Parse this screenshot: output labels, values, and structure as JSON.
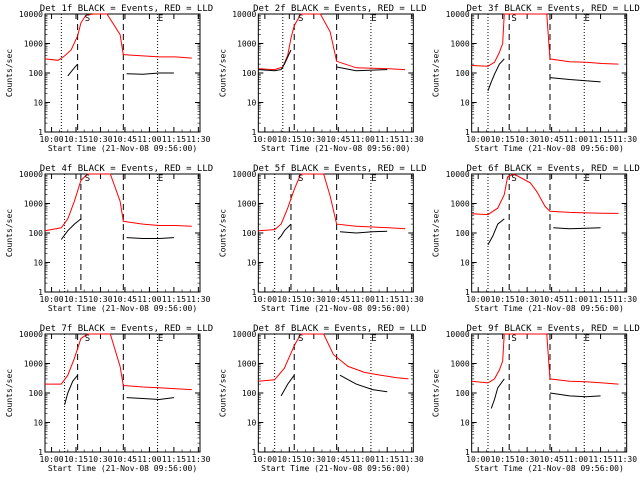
{
  "layout": {
    "rows": 3,
    "cols": 3
  },
  "common": {
    "ylabel": "Counts/sec",
    "xlabel": "Start Time (21-Nov-08 09:56:00)",
    "x_ticks": [
      "10:00",
      "10:15",
      "10:30",
      "10:45",
      "11:00",
      "11:15",
      "11:30"
    ],
    "y_ticks": [
      "1",
      "10",
      "100",
      "1000",
      "10000"
    ],
    "colors": {
      "events": "#000000",
      "lld": "#ff0000",
      "axes": "#000000"
    }
  },
  "chart_data": [
    {
      "type": "line",
      "title": "Det 1f BLACK = Events, RED = LLD",
      "xlim": [
        0,
        95
      ],
      "ylim": [
        1,
        10000
      ],
      "yscale": "log",
      "x_ticks": [
        4,
        19,
        34,
        49,
        64,
        79,
        94
      ],
      "markers": {
        "dotted": [
          10,
          69
        ],
        "dashed": [
          20,
          48
        ],
        "label_S": 26,
        "label_E": 69
      },
      "series": [
        {
          "color": "red",
          "points": [
            [
              0,
              300
            ],
            [
              8,
              270
            ],
            [
              12,
              380
            ],
            [
              16,
              600
            ],
            [
              20,
              1800
            ],
            [
              22,
              5000
            ],
            [
              25,
              9000
            ],
            [
              30,
              10000
            ],
            [
              38,
              10000
            ],
            [
              46,
              2000
            ],
            [
              48,
              420
            ],
            [
              60,
              380
            ],
            [
              70,
              350
            ],
            [
              80,
              350
            ],
            [
              90,
              320
            ]
          ]
        },
        {
          "color": "black",
          "points": [
            [
              14,
              80
            ],
            [
              16,
              110
            ],
            [
              18,
              150
            ],
            [
              20,
              200
            ],
            [
              50,
              95
            ],
            [
              60,
              90
            ],
            [
              70,
              100
            ],
            [
              79,
              100
            ]
          ]
        }
      ]
    },
    {
      "type": "line",
      "title": "Det 2f BLACK = Events, RED = LLD",
      "xlim": [
        0,
        95
      ],
      "ylim": [
        1,
        10000
      ],
      "yscale": "log",
      "x_ticks": [
        4,
        19,
        34,
        49,
        64,
        79,
        94
      ],
      "markers": {
        "dotted": [
          15,
          69
        ],
        "dashed": [
          22,
          48
        ],
        "label_S": 26,
        "label_E": 69
      },
      "series": [
        {
          "color": "red",
          "points": [
            [
              0,
              140
            ],
            [
              10,
              130
            ],
            [
              15,
              160
            ],
            [
              18,
              400
            ],
            [
              20,
              1500
            ],
            [
              22,
              4000
            ],
            [
              26,
              10000
            ],
            [
              38,
              10000
            ],
            [
              44,
              2500
            ],
            [
              48,
              250
            ],
            [
              60,
              150
            ],
            [
              70,
              145
            ],
            [
              80,
              140
            ],
            [
              90,
              130
            ]
          ]
        },
        {
          "color": "black",
          "points": [
            [
              0,
              130
            ],
            [
              10,
              120
            ],
            [
              14,
              130
            ],
            [
              16,
              200
            ],
            [
              20,
              600
            ],
            [
              48,
              160
            ],
            [
              60,
              120
            ],
            [
              70,
              125
            ],
            [
              79,
              130
            ]
          ]
        }
      ]
    },
    {
      "type": "line",
      "title": "Det 3f BLACK = Events, RED = LLD",
      "xlim": [
        0,
        95
      ],
      "ylim": [
        1,
        10000
      ],
      "yscale": "log",
      "x_ticks": [
        4,
        19,
        34,
        49,
        64,
        79,
        94
      ],
      "markers": {
        "dotted": [
          10,
          69
        ],
        "dashed": [
          23,
          48
        ],
        "label_S": 26,
        "label_E": 69
      },
      "series": [
        {
          "color": "red",
          "points": [
            [
              0,
              180
            ],
            [
              10,
              170
            ],
            [
              14,
              230
            ],
            [
              17,
              500
            ],
            [
              19,
              1000
            ],
            [
              20,
              10000
            ],
            [
              46,
              10000
            ],
            [
              48,
              300
            ],
            [
              60,
              240
            ],
            [
              70,
              230
            ],
            [
              80,
              210
            ],
            [
              90,
              200
            ]
          ]
        },
        {
          "color": "black",
          "points": [
            [
              10,
              25
            ],
            [
              12,
              50
            ],
            [
              14,
              90
            ],
            [
              17,
              200
            ],
            [
              20,
              300
            ],
            [
              48,
              70
            ],
            [
              60,
              60
            ],
            [
              70,
              55
            ],
            [
              79,
              50
            ]
          ]
        }
      ]
    },
    {
      "type": "line",
      "title": "Det 4f BLACK = Events, RED = LLD",
      "xlim": [
        0,
        95
      ],
      "ylim": [
        1,
        10000
      ],
      "yscale": "log",
      "x_ticks": [
        4,
        19,
        34,
        49,
        64,
        79,
        94
      ],
      "markers": {
        "dotted": [
          12,
          69
        ],
        "dashed": [
          22,
          48
        ],
        "label_S": 26,
        "label_E": 69
      },
      "series": [
        {
          "color": "red",
          "points": [
            [
              0,
              120
            ],
            [
              10,
              150
            ],
            [
              14,
              300
            ],
            [
              18,
              1200
            ],
            [
              22,
              6000
            ],
            [
              26,
              10000
            ],
            [
              40,
              10000
            ],
            [
              46,
              1200
            ],
            [
              48,
              250
            ],
            [
              60,
              200
            ],
            [
              70,
              180
            ],
            [
              80,
              180
            ],
            [
              90,
              170
            ]
          ]
        },
        {
          "color": "black",
          "points": [
            [
              10,
              60
            ],
            [
              14,
              120
            ],
            [
              18,
              200
            ],
            [
              22,
              300
            ],
            [
              50,
              70
            ],
            [
              60,
              65
            ],
            [
              70,
              65
            ],
            [
              79,
              70
            ]
          ]
        }
      ]
    },
    {
      "type": "line",
      "title": "Det 5f BLACK = Events, RED = LLD",
      "xlim": [
        0,
        95
      ],
      "ylim": [
        1,
        10000
      ],
      "yscale": "log",
      "x_ticks": [
        4,
        19,
        34,
        49,
        64,
        79,
        94
      ],
      "markers": {
        "dotted": [
          10,
          69
        ],
        "dashed": [
          20,
          48
        ],
        "label_S": 26,
        "label_E": 69
      },
      "series": [
        {
          "color": "red",
          "points": [
            [
              0,
              120
            ],
            [
              10,
              130
            ],
            [
              14,
              200
            ],
            [
              18,
              700
            ],
            [
              22,
              3000
            ],
            [
              26,
              10000
            ],
            [
              40,
              10000
            ],
            [
              44,
              1800
            ],
            [
              48,
              200
            ],
            [
              60,
              170
            ],
            [
              70,
              160
            ],
            [
              80,
              150
            ],
            [
              90,
              140
            ]
          ]
        },
        {
          "color": "black",
          "points": [
            [
              12,
              60
            ],
            [
              14,
              80
            ],
            [
              16,
              120
            ],
            [
              20,
              200
            ],
            [
              50,
              110
            ],
            [
              60,
              100
            ],
            [
              70,
              110
            ],
            [
              79,
              115
            ]
          ]
        }
      ]
    },
    {
      "type": "line",
      "title": "Det 6f BLACK = Events, RED = LLD",
      "xlim": [
        0,
        95
      ],
      "ylim": [
        1,
        10000
      ],
      "yscale": "log",
      "x_ticks": [
        4,
        19,
        34,
        49,
        64,
        79,
        94
      ],
      "markers": {
        "dotted": [
          10,
          69
        ],
        "dashed": [
          23,
          48
        ],
        "label_S": 26,
        "label_E": 69
      },
      "series": [
        {
          "color": "red",
          "points": [
            [
              0,
              450
            ],
            [
              10,
              420
            ],
            [
              16,
              700
            ],
            [
              20,
              2000
            ],
            [
              22,
              8000
            ],
            [
              26,
              10000
            ],
            [
              36,
              5000
            ],
            [
              40,
              2500
            ],
            [
              45,
              800
            ],
            [
              48,
              550
            ],
            [
              60,
              500
            ],
            [
              70,
              480
            ],
            [
              80,
              470
            ],
            [
              90,
              460
            ]
          ]
        },
        {
          "color": "black",
          "points": [
            [
              10,
              40
            ],
            [
              13,
              80
            ],
            [
              16,
              200
            ],
            [
              20,
              300
            ],
            [
              50,
              150
            ],
            [
              60,
              140
            ],
            [
              70,
              145
            ],
            [
              79,
              150
            ]
          ]
        }
      ]
    },
    {
      "type": "line",
      "title": "Det 7f BLACK = Events, RED = LLD",
      "xlim": [
        0,
        95
      ],
      "ylim": [
        1,
        10000
      ],
      "yscale": "log",
      "x_ticks": [
        4,
        19,
        34,
        49,
        64,
        79,
        94
      ],
      "markers": {
        "dotted": [
          12,
          69
        ],
        "dashed": [
          20,
          48
        ],
        "label_S": 26,
        "label_E": 69
      },
      "series": [
        {
          "color": "red",
          "points": [
            [
              0,
              200
            ],
            [
              10,
              200
            ],
            [
              14,
              400
            ],
            [
              18,
              1500
            ],
            [
              22,
              7000
            ],
            [
              26,
              10000
            ],
            [
              40,
              10000
            ],
            [
              46,
              800
            ],
            [
              48,
              180
            ],
            [
              60,
              160
            ],
            [
              70,
              150
            ],
            [
              80,
              140
            ],
            [
              90,
              130
            ]
          ]
        },
        {
          "color": "black",
          "points": [
            [
              12,
              40
            ],
            [
              14,
              100
            ],
            [
              17,
              250
            ],
            [
              20,
              400
            ],
            [
              50,
              70
            ],
            [
              60,
              65
            ],
            [
              70,
              60
            ],
            [
              79,
              70
            ]
          ]
        }
      ]
    },
    {
      "type": "line",
      "title": "Det 8f BLACK = Events, RED = LLD",
      "xlim": [
        0,
        95
      ],
      "ylim": [
        1,
        10000
      ],
      "yscale": "log",
      "x_ticks": [
        4,
        19,
        34,
        49,
        64,
        79,
        94
      ],
      "markers": {
        "dotted": [
          10,
          69
        ],
        "dashed": [
          22,
          48
        ],
        "label_S": 26,
        "label_E": 69
      },
      "series": [
        {
          "color": "red",
          "points": [
            [
              0,
              250
            ],
            [
              10,
              280
            ],
            [
              16,
              700
            ],
            [
              22,
              4000
            ],
            [
              26,
              10000
            ],
            [
              40,
              10000
            ],
            [
              46,
              2000
            ],
            [
              55,
              800
            ],
            [
              65,
              500
            ],
            [
              75,
              400
            ],
            [
              85,
              330
            ],
            [
              92,
              300
            ]
          ]
        },
        {
          "color": "black",
          "points": [
            [
              14,
              80
            ],
            [
              18,
              200
            ],
            [
              22,
              400
            ],
            [
              50,
              400
            ],
            [
              60,
              200
            ],
            [
              70,
              130
            ],
            [
              79,
              110
            ]
          ]
        }
      ]
    },
    {
      "type": "line",
      "title": "Det 9f BLACK = Events, RED = LLD",
      "xlim": [
        0,
        95
      ],
      "ylim": [
        1,
        10000
      ],
      "yscale": "log",
      "x_ticks": [
        4,
        19,
        34,
        49,
        64,
        79,
        94
      ],
      "markers": {
        "dotted": [
          10,
          69
        ],
        "dashed": [
          23,
          48
        ],
        "label_S": 26,
        "label_E": 69
      },
      "series": [
        {
          "color": "red",
          "points": [
            [
              0,
              250
            ],
            [
              10,
              220
            ],
            [
              14,
              300
            ],
            [
              17,
              600
            ],
            [
              19,
              1200
            ],
            [
              20,
              10000
            ],
            [
              46,
              10000
            ],
            [
              48,
              300
            ],
            [
              60,
              250
            ],
            [
              70,
              240
            ],
            [
              80,
              220
            ],
            [
              90,
              200
            ]
          ]
        },
        {
          "color": "black",
          "points": [
            [
              12,
              30
            ],
            [
              14,
              60
            ],
            [
              16,
              150
            ],
            [
              20,
              300
            ],
            [
              48,
              100
            ],
            [
              60,
              80
            ],
            [
              70,
              75
            ],
            [
              79,
              80
            ]
          ]
        }
      ]
    }
  ]
}
